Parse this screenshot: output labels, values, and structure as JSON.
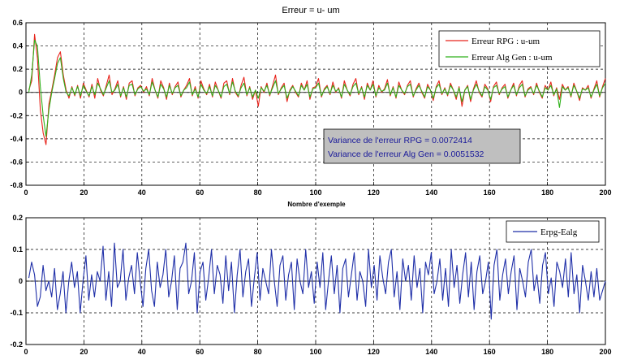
{
  "chart_data": [
    {
      "type": "line",
      "title": "Erreur = u- um",
      "xlabel": "Nombre d'exemple",
      "ylabel": "",
      "xlim": [
        0,
        200
      ],
      "ylim": [
        -0.8,
        0.6
      ],
      "xticks": [
        "0",
        "20",
        "40",
        "60",
        "80",
        "100",
        "120",
        "140",
        "160",
        "180",
        "200"
      ],
      "yticks": [
        "0.6",
        "0.4",
        "0.2",
        "0",
        "-0.2",
        "-0.4",
        "-0.6",
        "-0.8"
      ],
      "grid": true,
      "legend_position": "top-right",
      "series": [
        {
          "name": "Erreur RPG : u-um",
          "color": "#e8241c",
          "values": [
            0.02,
            0.1,
            0.5,
            0.3,
            -0.15,
            -0.35,
            -0.45,
            -0.1,
            0.02,
            0.15,
            0.3,
            0.35,
            0.15,
            0.02,
            -0.05,
            0.05,
            -0.03,
            0.06,
            -0.05,
            0.08,
            0.02,
            -0.04,
            0.07,
            -0.05,
            0.12,
            0.02,
            -0.03,
            0.06,
            0.15,
            -0.02,
            0.03,
            0.1,
            -0.04,
            0.05,
            -0.06,
            0.08,
            0.1,
            -0.03,
            0.04,
            0.06,
            0.0,
            0.05,
            -0.03,
            0.12,
            0.02,
            -0.05,
            0.1,
            0.04,
            -0.06,
            0.08,
            -0.02,
            0.05,
            0.09,
            -0.04,
            0.02,
            0.06,
            0.12,
            -0.03,
            0.05,
            -0.05,
            0.1,
            0.03,
            -0.02,
            0.07,
            -0.04,
            0.09,
            0.02,
            -0.05,
            0.08,
            0.1,
            -0.02,
            0.12,
            0.0,
            -0.04,
            0.06,
            0.13,
            -0.03,
            0.05,
            -0.06,
            0.02,
            -0.12,
            0.05,
            0.0,
            0.08,
            -0.03,
            0.06,
            0.15,
            -0.02,
            0.04,
            0.08,
            -0.08,
            0.02,
            0.06,
            0.0,
            -0.04,
            0.08,
            0.02,
            0.1,
            -0.06,
            0.04,
            0.05,
            0.12,
            -0.04,
            0.03,
            0.06,
            -0.02,
            0.09,
            0.0,
            0.04,
            -0.05,
            0.1,
            0.02,
            -0.03,
            0.07,
            0.12,
            -0.02,
            0.05,
            -0.06,
            0.08,
            0.02,
            0.1,
            -0.04,
            0.06,
            0.0,
            0.03,
            0.11,
            -0.03,
            0.05,
            -0.05,
            0.09,
            0.02,
            -0.02,
            0.06,
            0.1,
            -0.04,
            0.03,
            0.08,
            0.0,
            -0.05,
            0.07,
            0.02,
            -0.07,
            0.05,
            0.1,
            -0.02,
            0.04,
            -0.03,
            0.08,
            0.02,
            -0.06,
            0.05,
            -0.12,
            0.02,
            0.06,
            -0.08,
            0.03,
            0.1,
            0.0,
            -0.04,
            0.07,
            0.03,
            -0.08,
            0.05,
            0.09,
            -0.02,
            0.04,
            0.07,
            -0.05,
            0.02,
            0.08,
            -0.03,
            0.06,
            0.1,
            -0.04,
            0.03,
            0.05,
            -0.02,
            0.08,
            0.0,
            -0.05,
            0.06,
            0.02,
            0.09,
            -0.03,
            0.04,
            -0.06,
            0.07,
            0.02,
            0.05,
            -0.04,
            0.08,
            0.01,
            -0.07,
            0.04,
            0.02,
            0.06,
            -0.05,
            0.03,
            0.1,
            -0.04,
            0.05,
            0.12
          ]
        },
        {
          "name": "Erreur Alg Gen : u-um",
          "color": "#2fb11a",
          "values": [
            0.0,
            0.15,
            0.45,
            0.4,
            0.05,
            -0.2,
            -0.38,
            -0.15,
            0.0,
            0.12,
            0.25,
            0.3,
            0.12,
            0.0,
            -0.03,
            0.04,
            -0.02,
            0.05,
            -0.03,
            0.06,
            0.01,
            -0.03,
            0.05,
            -0.02,
            0.08,
            0.03,
            -0.02,
            0.04,
            0.1,
            0.0,
            0.02,
            0.07,
            -0.03,
            0.04,
            -0.04,
            0.06,
            0.07,
            -0.02,
            0.03,
            0.05,
            0.01,
            0.03,
            -0.02,
            0.09,
            0.02,
            -0.04,
            0.07,
            0.03,
            -0.04,
            0.06,
            -0.01,
            0.04,
            0.06,
            -0.03,
            0.02,
            0.04,
            0.09,
            -0.02,
            0.03,
            -0.04,
            0.07,
            0.02,
            -0.01,
            0.05,
            -0.03,
            0.06,
            0.02,
            -0.04,
            0.05,
            0.07,
            -0.01,
            0.09,
            0.01,
            -0.03,
            0.04,
            0.08,
            -0.02,
            0.04,
            -0.04,
            0.02,
            -0.05,
            0.04,
            0.01,
            0.06,
            -0.02,
            0.04,
            0.1,
            -0.01,
            0.03,
            0.06,
            -0.05,
            0.01,
            0.05,
            0.01,
            -0.03,
            0.06,
            0.02,
            0.07,
            -0.04,
            0.03,
            0.04,
            0.08,
            -0.03,
            0.02,
            0.05,
            -0.01,
            0.06,
            0.01,
            0.03,
            -0.04,
            0.07,
            0.02,
            -0.02,
            0.05,
            0.08,
            -0.01,
            0.04,
            -0.04,
            0.06,
            0.02,
            0.07,
            -0.03,
            0.04,
            0.01,
            0.02,
            0.08,
            -0.02,
            0.04,
            -0.04,
            0.06,
            0.02,
            -0.01,
            0.05,
            0.07,
            -0.03,
            0.02,
            0.06,
            0.01,
            -0.04,
            0.05,
            0.02,
            -0.05,
            0.04,
            0.07,
            -0.01,
            0.03,
            -0.02,
            0.06,
            0.02,
            -0.04,
            0.04,
            -0.08,
            0.02,
            0.05,
            -0.06,
            0.02,
            0.07,
            0.01,
            -0.03,
            0.05,
            0.02,
            -0.06,
            0.04,
            0.06,
            -0.01,
            0.03,
            0.05,
            -0.04,
            0.02,
            0.06,
            -0.02,
            0.04,
            0.07,
            -0.03,
            0.02,
            0.04,
            -0.01,
            0.06,
            0.01,
            -0.04,
            0.04,
            0.02,
            0.06,
            -0.02,
            0.03,
            -0.13,
            0.05,
            0.02,
            0.04,
            -0.03,
            0.06,
            0.01,
            -0.05,
            0.03,
            0.02,
            0.04,
            -0.04,
            0.02,
            0.07,
            -0.03,
            0.04,
            0.08
          ]
        }
      ],
      "annotation": [
        "Variance de l'erreur RPG = 0.0072414",
        "Variance de l'erreur Alg Gen = 0.0051532"
      ]
    },
    {
      "type": "line",
      "title": "",
      "xlabel": "",
      "ylabel": "",
      "xlim": [
        0,
        200
      ],
      "ylim": [
        -0.2,
        0.2
      ],
      "xticks": [
        "0",
        "20",
        "40",
        "60",
        "80",
        "100",
        "120",
        "140",
        "160",
        "180",
        "200"
      ],
      "yticks": [
        "0.2",
        "0.1",
        "0",
        "-0.1",
        "-0.2"
      ],
      "grid": true,
      "legend_position": "top-right",
      "series": [
        {
          "name": "Erpg-Ealg",
          "color": "#1f2fa8",
          "values": [
            0.01,
            0.06,
            0.02,
            -0.08,
            -0.05,
            0.05,
            -0.03,
            0.0,
            -0.05,
            0.04,
            -0.09,
            -0.04,
            0.03,
            -0.1,
            0.0,
            0.06,
            -0.02,
            0.03,
            -0.1,
            0.0,
            0.08,
            -0.06,
            0.02,
            -0.05,
            0.03,
            0.0,
            0.11,
            -0.06,
            0.03,
            -0.08,
            0.12,
            -0.02,
            0.0,
            0.1,
            -0.06,
            0.01,
            0.05,
            -0.04,
            0.09,
            0.0,
            -0.08,
            0.04,
            0.1,
            -0.03,
            -0.08,
            0.06,
            -0.02,
            0.02,
            0.1,
            -0.05,
            0.0,
            0.08,
            -0.09,
            0.04,
            0.06,
            0.12,
            -0.04,
            0.0,
            0.09,
            -0.1,
            0.03,
            0.06,
            -0.06,
            0.01,
            0.1,
            -0.04,
            0.05,
            0.02,
            -0.07,
            0.08,
            -0.03,
            0.06,
            -0.1,
            0.02,
            0.1,
            -0.05,
            0.03,
            0.07,
            -0.08,
            0.01,
            0.09,
            -0.06,
            0.04,
            0.0,
            -0.04,
            0.1,
            0.0,
            -0.08,
            0.05,
            0.08,
            -0.06,
            0.02,
            0.06,
            -0.09,
            0.07,
            0.0,
            -0.04,
            0.1,
            -0.02,
            0.03,
            -0.07,
            0.06,
            -0.02,
            0.09,
            -0.09,
            0.0,
            0.08,
            -0.04,
            0.05,
            -0.1,
            0.04,
            0.07,
            -0.05,
            0.02,
            0.09,
            -0.06,
            0.03,
            0.0,
            -0.08,
            0.1,
            -0.02,
            0.05,
            -0.06,
            0.08,
            0.01,
            -0.04,
            0.06,
            0.1,
            -0.05,
            0.03,
            -0.09,
            0.07,
            0.0,
            0.05,
            -0.06,
            0.08,
            -0.02,
            0.04,
            -0.1,
            0.06,
            0.02,
            0.09,
            -0.04,
            0.0,
            0.07,
            -0.06,
            0.04,
            -0.08,
            0.1,
            -0.02,
            0.05,
            -0.07,
            0.02,
            0.09,
            -0.05,
            0.06,
            -0.09,
            0.03,
            0.08,
            -0.04,
            0.0,
            0.06,
            -0.12,
            0.05,
            0.1,
            -0.06,
            0.02,
            0.07,
            -0.04,
            0.03,
            0.08,
            -0.09,
            0.04,
            0.0,
            -0.05,
            0.06,
            0.1,
            -0.03,
            0.02,
            -0.07,
            0.05,
            0.09,
            -0.04,
            0.01,
            -0.08,
            0.06,
            0.03,
            -0.02,
            0.07,
            -0.05,
            0.09,
            -0.04,
            0.02,
            -0.1,
            0.05,
            0.0,
            -0.06,
            0.03,
            -0.05,
            0.04,
            -0.06,
            -0.03,
            0.0
          ]
        }
      ]
    }
  ]
}
